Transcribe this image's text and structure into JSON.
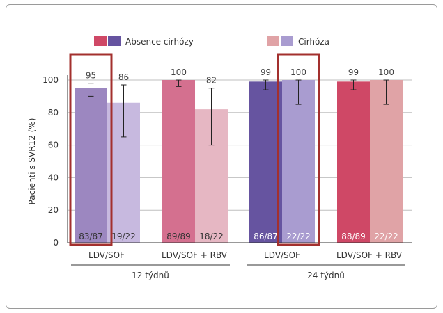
{
  "chart_data": {
    "type": "bar",
    "ylabel": "Pacienti s SVR12 (%)",
    "ylim": [
      0,
      100
    ],
    "yticks": [
      0,
      20,
      40,
      60,
      80,
      100
    ],
    "grid": true,
    "legend_position": "top",
    "legend": [
      {
        "label": "Absence cirhózy",
        "colors": [
          "#cf4866",
          "#6654a0"
        ]
      },
      {
        "label": "Cirhóza",
        "colors": [
          "#e0a3a6",
          "#a99cd0"
        ]
      }
    ],
    "groups": [
      {
        "label": "12 týdnů",
        "subgroups": [
          "LDV/SOF",
          "LDV/SOF + RBV"
        ]
      },
      {
        "label": "24 týdnů",
        "subgroups": [
          "LDV/SOF",
          "LDV/SOF + RBV"
        ]
      }
    ],
    "bars": [
      {
        "category": "LDV/SOF",
        "period": "12 týdnů",
        "series": "Absence cirhózy",
        "value": 95,
        "label": "95",
        "n": "83/87",
        "err_low": 90,
        "err_high": 98,
        "color": "#9c87c0",
        "label_color": "#333333",
        "highlighted": true
      },
      {
        "category": "LDV/SOF",
        "period": "12 týdnů",
        "series": "Cirhóza",
        "value": 86,
        "label": "86",
        "n": "19/22",
        "err_low": 65,
        "err_high": 97,
        "color": "#c7b9df",
        "label_color": "#333333",
        "highlighted": false
      },
      {
        "category": "LDV/SOF + RBV",
        "period": "12 týdnů",
        "series": "Absence cirhózy",
        "value": 100,
        "label": "100",
        "n": "89/89",
        "err_low": 96,
        "err_high": 100,
        "color": "#d4708f",
        "label_color": "#333333",
        "highlighted": false
      },
      {
        "category": "LDV/SOF + RBV",
        "period": "12 týdnů",
        "series": "Cirhóza",
        "value": 82,
        "label": "82",
        "n": "18/22",
        "err_low": 60,
        "err_high": 95,
        "color": "#e6b7c3",
        "label_color": "#333333",
        "highlighted": false
      },
      {
        "category": "LDV/SOF",
        "period": "24 týdnů",
        "series": "Absence cirhózy",
        "value": 99,
        "label": "99",
        "n": "86/87",
        "err_low": 94,
        "err_high": 100,
        "color": "#6654a0",
        "label_color": "#ffffff",
        "highlighted": false
      },
      {
        "category": "LDV/SOF",
        "period": "24 týdnů",
        "series": "Cirhóza",
        "value": 100,
        "label": "100",
        "n": "22/22",
        "err_low": 85,
        "err_high": 100,
        "color": "#a99cd0",
        "label_color": "#ffffff",
        "highlighted": true
      },
      {
        "category": "LDV/SOF + RBV",
        "period": "24 týdnů",
        "series": "Absence cirhózy",
        "value": 99,
        "label": "99",
        "n": "88/89",
        "err_low": 94,
        "err_high": 100,
        "color": "#cf4866",
        "label_color": "#ffffff",
        "highlighted": false
      },
      {
        "category": "LDV/SOF + RBV",
        "period": "24 týdnů",
        "series": "Cirhóza",
        "value": 100,
        "label": "100",
        "n": "22/22",
        "err_low": 85,
        "err_high": 100,
        "color": "#e0a3a6",
        "label_color": "#ffffff",
        "highlighted": false
      }
    ],
    "colors": {
      "grid": "#bfbfbf",
      "axis": "#333333",
      "highlight": "#a3302e"
    }
  }
}
